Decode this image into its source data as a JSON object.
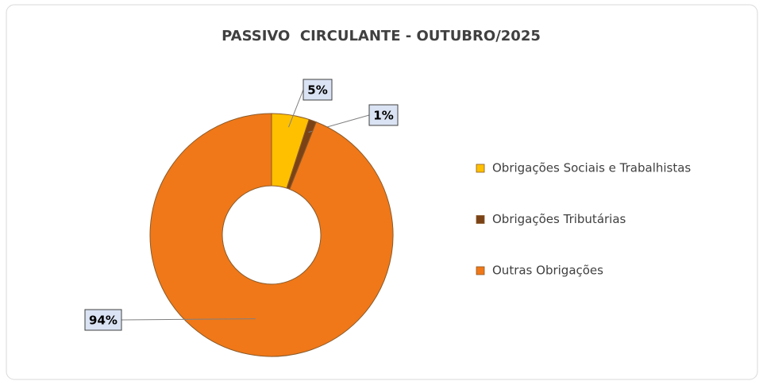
{
  "chart_data": {
    "type": "donut",
    "title": "PASSIVO  CIRCULANTE - OUTUBRO/2025",
    "categories": [
      "Obrigações Sociais e Trabalhistas",
      "Obrigações Tributárias",
      "Outras Obrigações"
    ],
    "values": [
      5,
      1,
      94
    ],
    "value_labels": [
      "5%",
      "1%",
      "94%"
    ],
    "colors": [
      "#ffc000",
      "#7b4216",
      "#f07818"
    ],
    "legend": "right"
  }
}
